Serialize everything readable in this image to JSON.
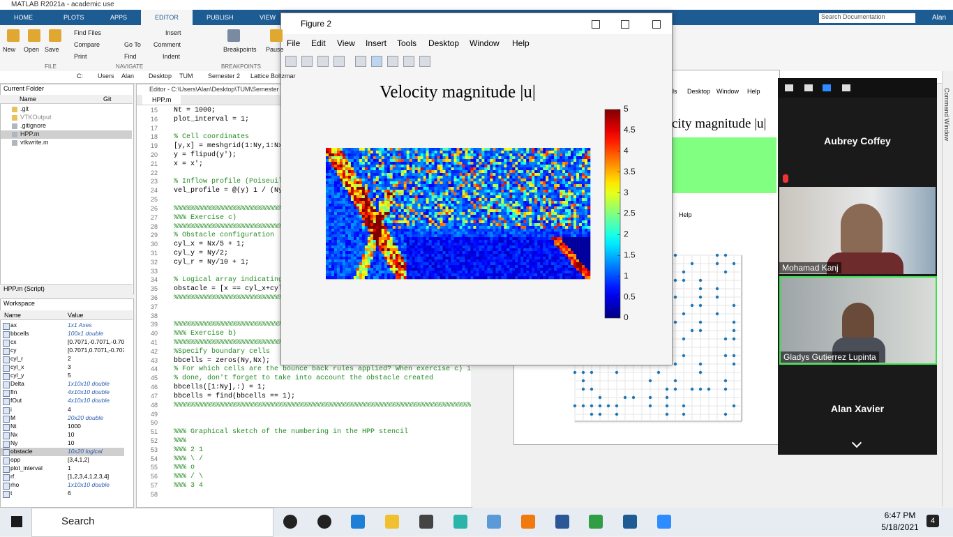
{
  "window": {
    "title": "MATLAB R2021a - academic use",
    "sidebar": "Command Window"
  },
  "ribbon": {
    "tabs": [
      "HOME",
      "PLOTS",
      "APPS",
      "EDITOR",
      "PUBLISH",
      "VIEW"
    ],
    "search": "Search Documentation",
    "user": "Alan",
    "buttons": [
      "New",
      "Open",
      "Save",
      "Find Files",
      "Compare",
      "Print",
      "Go To",
      "Find",
      "Insert",
      "Comment",
      "Indent",
      "Breakpoints",
      "Pause"
    ],
    "groups": [
      "FILE",
      "NAVIGATE",
      "BREAKPOINTS"
    ]
  },
  "address": [
    "C:",
    "Users",
    "Alan",
    "Desktop",
    "TUM",
    "Semester 2",
    "Lattice Boltzmar"
  ],
  "current_folder": {
    "title": "Current Folder",
    "columns": [
      "Name",
      "Git"
    ],
    "files": [
      ".git",
      "VTKOutput",
      ".gitignore",
      "HPP.m",
      "vtkwrite.m"
    ]
  },
  "details": "HPP.m (Script)",
  "workspace": {
    "title": "Workspace",
    "columns": [
      "Name",
      "Value"
    ],
    "rows": [
      [
        "ax",
        "1x1 Axes"
      ],
      [
        "bbcells",
        "100x1 double"
      ],
      [
        "cx",
        "[0.7071,-0.7071,-0.707"
      ],
      [
        "cy",
        "[0.7071,0.7071,-0.707..."
      ],
      [
        "cyl_r",
        "2"
      ],
      [
        "cyl_x",
        "3"
      ],
      [
        "cyl_y",
        "5"
      ],
      [
        "Delta",
        "1x10x10 double"
      ],
      [
        "fIn",
        "4x10x10 double"
      ],
      [
        "fOut",
        "4x10x10 double"
      ],
      [
        "i",
        "4"
      ],
      [
        "M",
        "20x20 double"
      ],
      [
        "Nt",
        "1000"
      ],
      [
        "Nx",
        "10"
      ],
      [
        "Ny",
        "10"
      ],
      [
        "obstacle",
        "10x20 logical"
      ],
      [
        "opp",
        "[3,4,1,2]"
      ],
      [
        "plot_interval",
        "1"
      ],
      [
        "rf",
        "[1,2,3,4,1,2,3,4]"
      ],
      [
        "rho",
        "1x10x10 double"
      ],
      [
        "t",
        "6"
      ]
    ]
  },
  "editor": {
    "path": "Editor - C:\\Users\\Alan\\Desktop\\TUM\\Semester 2\\L",
    "tab": "HPP.m",
    "lines": [
      {
        "n": 15,
        "code": "Nt = 1000;"
      },
      {
        "n": 16,
        "code": "plot_interval = 1;"
      },
      {
        "n": 17
      },
      {
        "n": 18,
        "code": "% Cell coordinates"
      },
      {
        "n": 19,
        "code": "[y,x] = meshgrid(1:Ny,1:Nx)"
      },
      {
        "n": 20,
        "code": "y     = flipud(y');"
      },
      {
        "n": 21,
        "code": "x     = x';"
      },
      {
        "n": 22
      },
      {
        "n": 23,
        "code": "% Inflow profile (Poiseuill"
      },
      {
        "n": 24,
        "code": "vel_profile = @(y) 1 / (Ny/"
      },
      {
        "n": 25
      },
      {
        "n": 26,
        "code": "%%%%%%%%%%%%%%%%%%%%%%%%%%%%%%"
      },
      {
        "n": 27,
        "code": "%%% Exercise c)"
      },
      {
        "n": 28,
        "code": "%%%%%%%%%%%%%%%%%%%%%%%%%%%%%%"
      },
      {
        "n": 29,
        "code": "% Obstacle configuration"
      },
      {
        "n": 30,
        "code": "cyl_x    = Nx/5 + 1;"
      },
      {
        "n": 31,
        "code": "cyl_y    = Ny/2;"
      },
      {
        "n": 32,
        "code": "cyl_r    = Ny/10 + 1;"
      },
      {
        "n": 33
      },
      {
        "n": 34,
        "code": "% Logical array indicating"
      },
      {
        "n": 35,
        "code": "obstacle = [x == cyl_x+cyl_"
      },
      {
        "n": 36,
        "code": "%%%%%%%%%%%%%%%%%%%%%%%%%%%%%%"
      },
      {
        "n": 37
      },
      {
        "n": 38
      },
      {
        "n": 39,
        "code": "%%%%%%%%%%%%%%%%%%%%%%%%%%%%%%"
      },
      {
        "n": 40,
        "code": "%%% Exercise b)"
      },
      {
        "n": 41,
        "code": "%%%%%%%%%%%%%%%%%%%%%%%%%%%%%%"
      },
      {
        "n": 42,
        "code": "%Specify boundary cells"
      },
      {
        "n": 43,
        "code": "bbcells = zeros(Ny,Nx);"
      },
      {
        "n": 44,
        "code": "% For which cells are the bounce back rules applied? When exercise c) is"
      },
      {
        "n": 45,
        "code": "% done, don't forget to take into account the obstacle created"
      },
      {
        "n": 46,
        "code": "bbcells([1:Ny],:) = 1;"
      },
      {
        "n": 47,
        "code": "bbcells = find(bbcells == 1);"
      },
      {
        "n": 48,
        "code": "%%%%%%%%%%%%%%%%%%%%%%%%%%%%%%%%%%%%%%%%%%%%%%%%%%%%%%%%%%%%%%%%%%%%%%%%%"
      },
      {
        "n": 49
      },
      {
        "n": 50
      },
      {
        "n": 51,
        "code": "%%% Graphical sketch of the numbering in the HPP stencil"
      },
      {
        "n": 52,
        "code": "%%%"
      },
      {
        "n": 53,
        "code": "%%%    2     1"
      },
      {
        "n": 54,
        "code": "%%%     \\   /"
      },
      {
        "n": 55,
        "code": "%%%       o"
      },
      {
        "n": 56,
        "code": "%%%     /   \\"
      },
      {
        "n": 57,
        "code": "%%%    3     4"
      },
      {
        "n": 58
      }
    ]
  },
  "figure": {
    "title": "Figure 2",
    "menus": [
      "File",
      "Edit",
      "View",
      "Insert",
      "Tools",
      "Desktop",
      "Window",
      "Help"
    ]
  },
  "chart_data": {
    "type": "heatmap",
    "title": "Velocity magnitude |u|",
    "colormap": "jet",
    "clim": [
      0,
      5
    ],
    "cticks": [
      0,
      0.5,
      1,
      1.5,
      2,
      2.5,
      3,
      3.5,
      4,
      4.5,
      5
    ]
  },
  "background_figure": {
    "menus": [
      "ols",
      "Desktop",
      "Window",
      "Help"
    ],
    "menu2": "Help",
    "title": "city magnitude |u|"
  },
  "zoom": {
    "participants": [
      "Aubrey Coffey",
      "Mohamad Kanj",
      "Gladys Gutierrez Lupinta",
      "Alan Xavier"
    ]
  },
  "taskbar": {
    "search": "Search",
    "time": "6:47 PM",
    "date": "5/18/2021",
    "notifications": "4"
  }
}
